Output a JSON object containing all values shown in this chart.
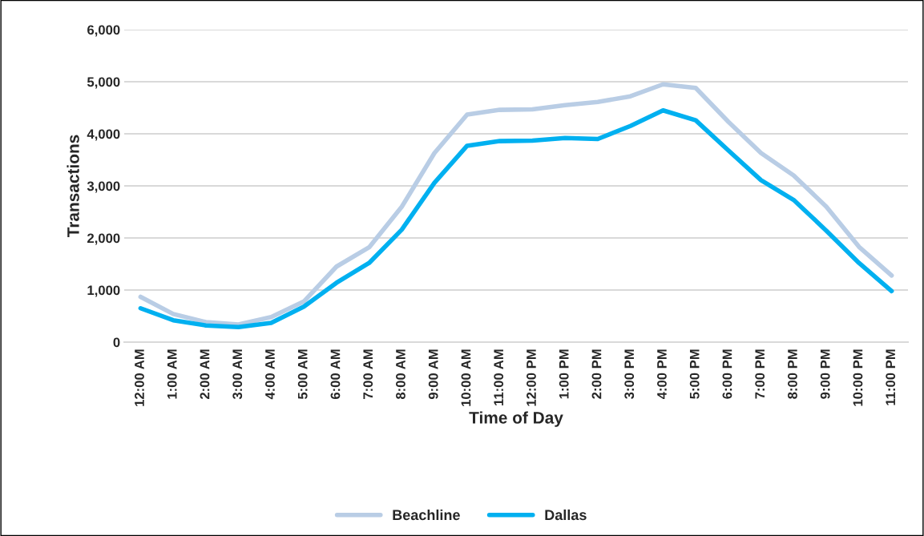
{
  "chart_data": {
    "type": "line",
    "xlabel": "Time of Day",
    "ylabel": "Transactions",
    "categories": [
      "12:00 AM",
      "1:00 AM",
      "2:00 AM",
      "3:00 AM",
      "4:00 AM",
      "5:00 AM",
      "6:00 AM",
      "7:00 AM",
      "8:00 AM",
      "9:00 AM",
      "10:00 AM",
      "11:00 AM",
      "12:00 PM",
      "1:00 PM",
      "2:00 PM",
      "3:00 PM",
      "4:00 PM",
      "5:00 PM",
      "6:00 PM",
      "7:00 PM",
      "8:00 PM",
      "9:00 PM",
      "10:00 PM",
      "11:00 PM"
    ],
    "series": [
      {
        "name": "Beachline",
        "color": "#b9cde5",
        "values": [
          870,
          540,
          385,
          340,
          480,
          780,
          1450,
          1820,
          2600,
          3630,
          4370,
          4460,
          4470,
          4550,
          4610,
          4720,
          4950,
          4880,
          4230,
          3630,
          3200,
          2600,
          1830,
          1280
        ]
      },
      {
        "name": "Dallas",
        "color": "#00b0f0",
        "values": [
          650,
          420,
          320,
          290,
          370,
          680,
          1140,
          1520,
          2160,
          3060,
          3770,
          3860,
          3870,
          3920,
          3900,
          4150,
          4450,
          4260,
          3680,
          3110,
          2730,
          2140,
          1520,
          980
        ]
      }
    ],
    "ylim": [
      0,
      6000
    ],
    "yticks": [
      {
        "value": 0,
        "label": "0"
      },
      {
        "value": 1000,
        "label": "1,000"
      },
      {
        "value": 2000,
        "label": "2,000"
      },
      {
        "value": 3000,
        "label": "3,000"
      },
      {
        "value": 4000,
        "label": "4,000"
      },
      {
        "value": 5000,
        "label": "5,000"
      },
      {
        "value": 6000,
        "label": "6,000"
      }
    ],
    "grid": "y",
    "legend": "bottom",
    "marker": "none",
    "line_style": "solid"
  }
}
